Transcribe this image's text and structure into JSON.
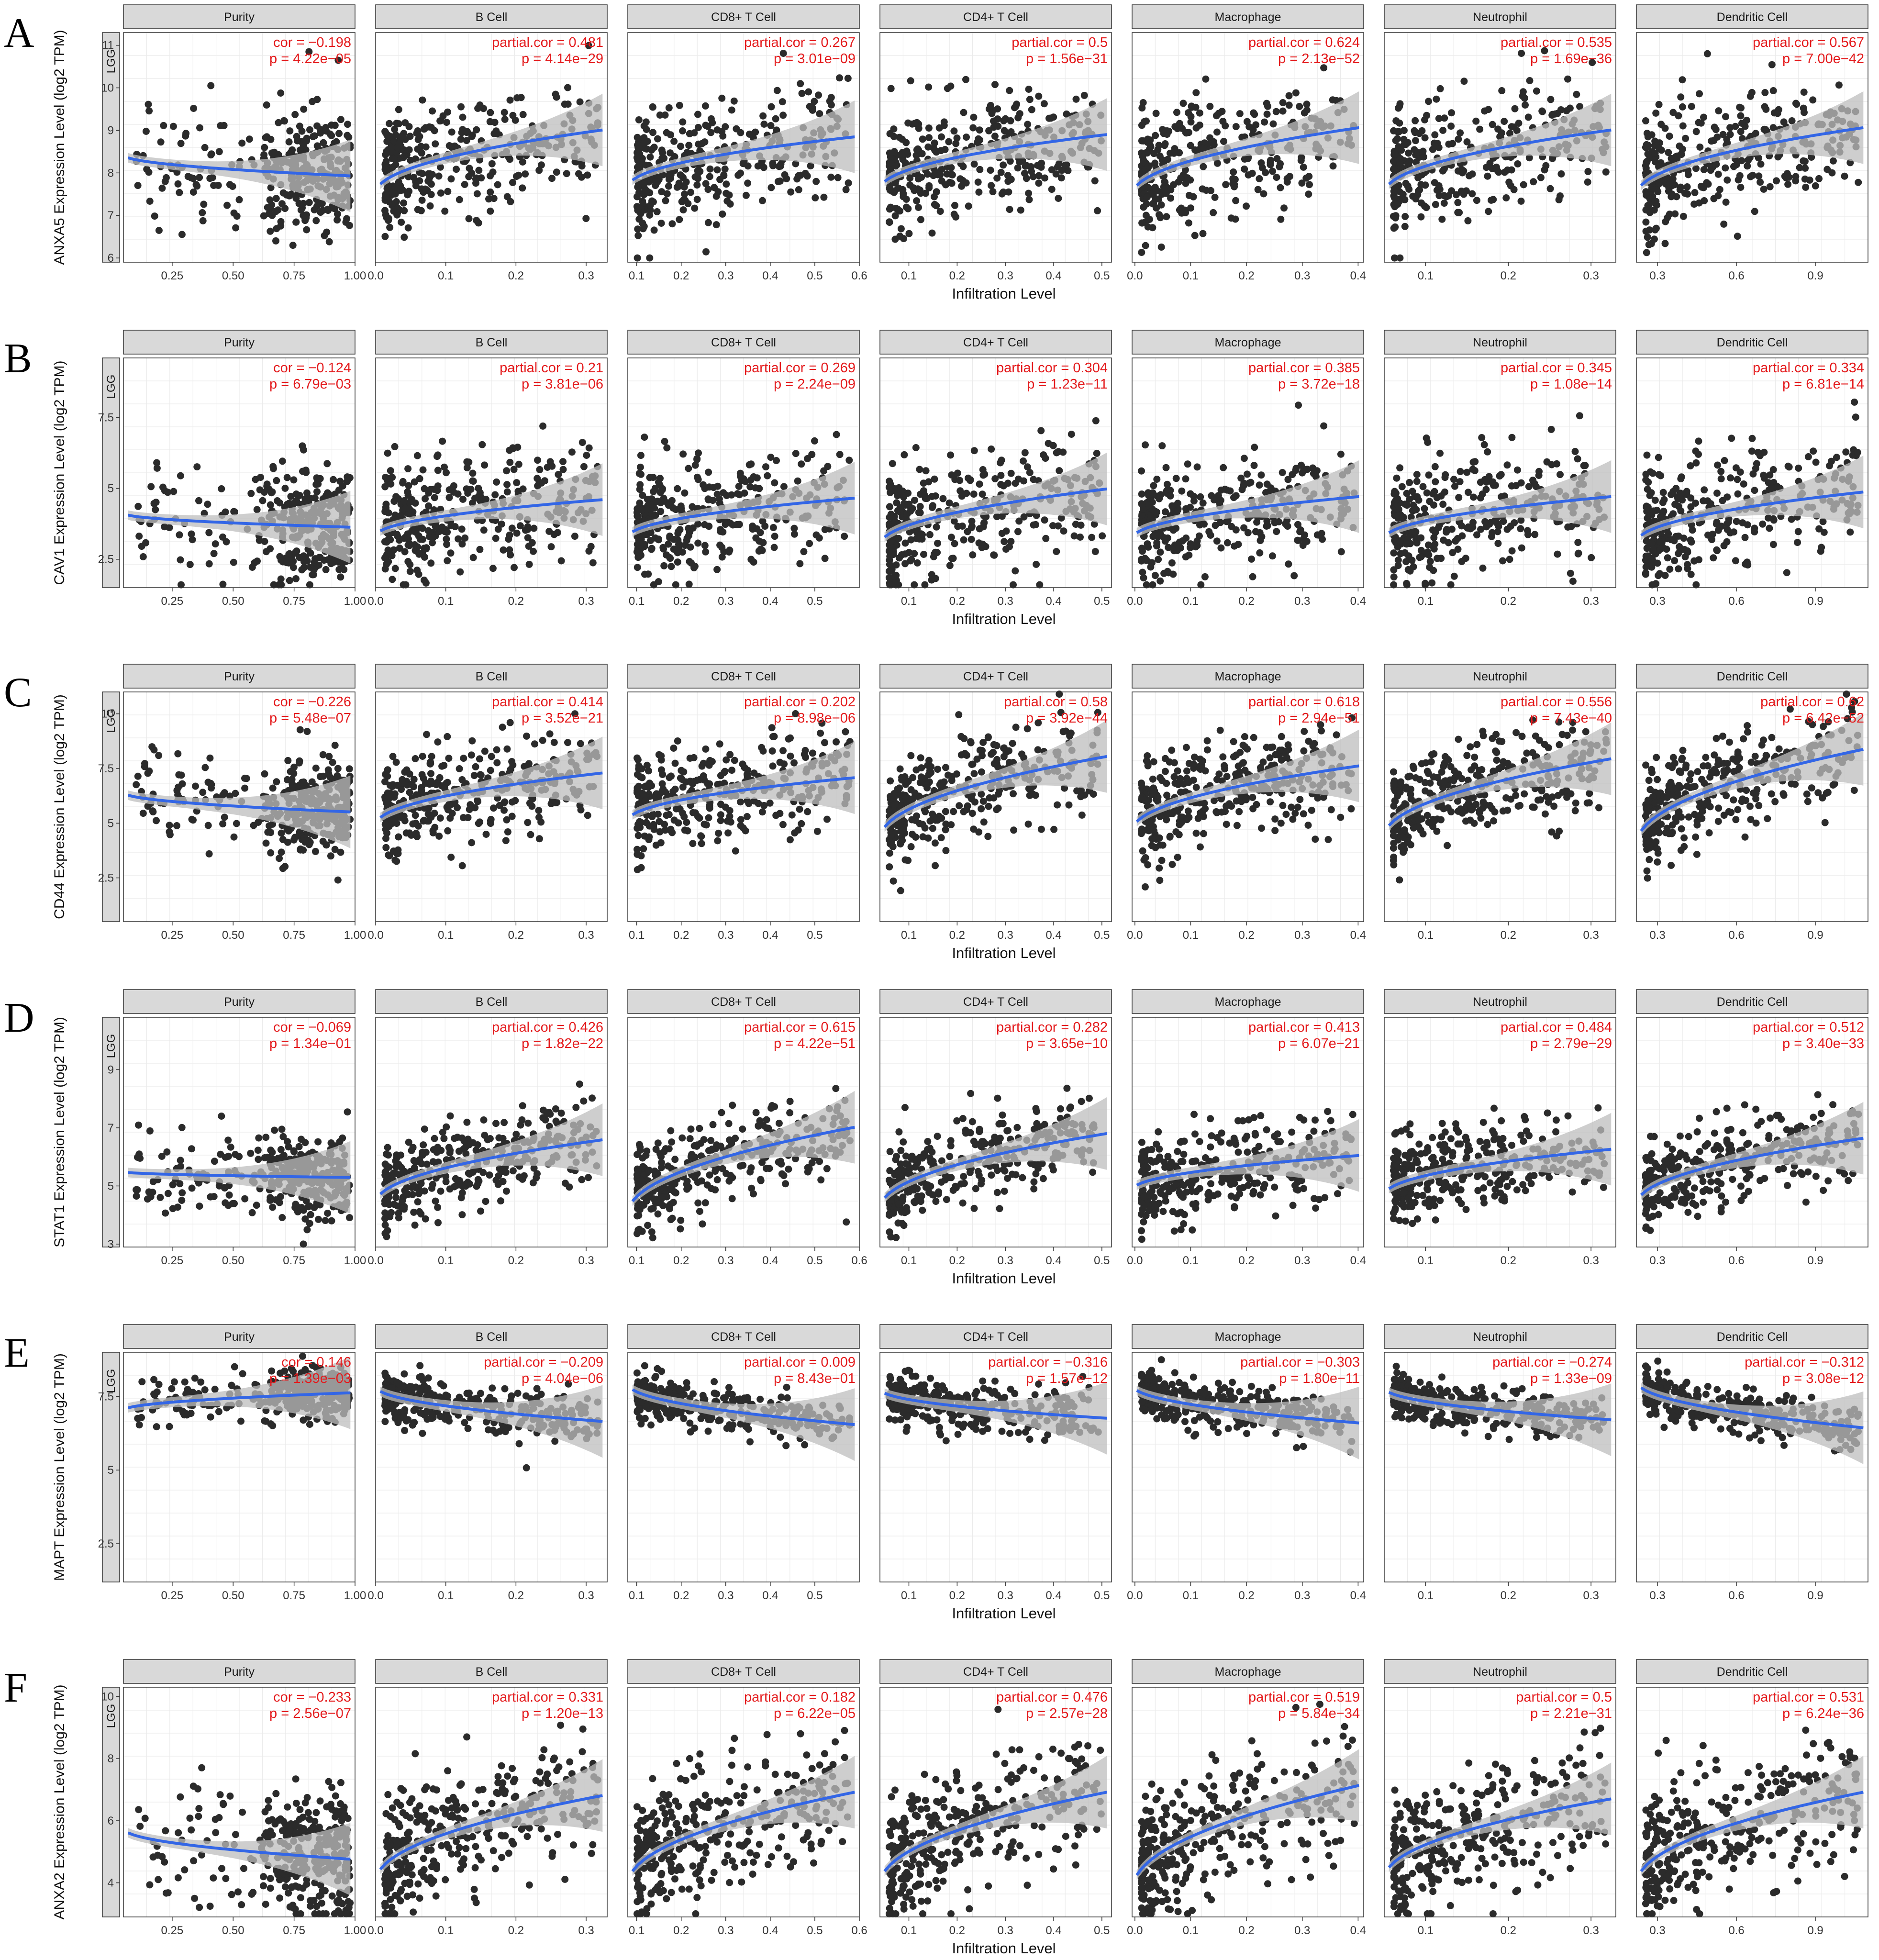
{
  "figure": {
    "tumor_label": "LGG",
    "x_axis_label": "Infiltration Level",
    "panel_strips": [
      "Purity",
      "B Cell",
      "CD8+ T Cell",
      "CD4+ T Cell",
      "Macrophage",
      "Neutrophil",
      "Dendritic Cell"
    ],
    "colors": {
      "points": "#2b2b2b",
      "fit_line": "#3366e6",
      "ci_band": "#bdbdbd",
      "stat_text": "#e41a1c",
      "strip_fill": "#d9d9d9"
    }
  },
  "chart_data": [
    {
      "letter": "A",
      "type": "scatter",
      "ylabel": "ANXA5 Expression Level (log2 TPM)",
      "y_ticks": [
        6,
        7,
        8,
        9,
        10,
        11
      ],
      "panels": [
        {
          "name": "Purity",
          "stat": "cor = −0.198",
          "p": "p = 4.22e−05",
          "x_ticks": [
            "0.25",
            "0.50",
            "0.75",
            "1.00"
          ]
        },
        {
          "name": "B Cell",
          "stat": "partial.cor = 0.481",
          "p": "p = 4.14e−29",
          "x_ticks": [
            "0.0",
            "0.1",
            "0.2",
            "0.3"
          ]
        },
        {
          "name": "CD8+ T Cell",
          "stat": "partial.cor = 0.267",
          "p": "p = 3.01e−09",
          "x_ticks": [
            "0.1",
            "0.2",
            "0.3",
            "0.4",
            "0.5",
            "0.6"
          ]
        },
        {
          "name": "CD4+ T Cell",
          "stat": "partial.cor = 0.5",
          "p": "p = 1.56e−31",
          "x_ticks": [
            "0.1",
            "0.2",
            "0.3",
            "0.4",
            "0.5"
          ]
        },
        {
          "name": "Macrophage",
          "stat": "partial.cor = 0.624",
          "p": "p = 2.13e−52",
          "x_ticks": [
            "0.0",
            "0.1",
            "0.2",
            "0.3",
            "0.4"
          ]
        },
        {
          "name": "Neutrophil",
          "stat": "partial.cor = 0.535",
          "p": "p = 1.69e−36",
          "x_ticks": [
            "0.1",
            "0.2",
            "0.3"
          ]
        },
        {
          "name": "Dendritic Cell",
          "stat": "partial.cor = 0.567",
          "p": "p = 7.00e−42",
          "x_ticks": [
            "0.3",
            "0.6",
            "0.9"
          ]
        }
      ]
    },
    {
      "letter": "B",
      "type": "scatter",
      "ylabel": "CAV1 Expression Level (log2 TPM)",
      "y_ticks": [
        2.5,
        5.0,
        7.5
      ],
      "panels": [
        {
          "name": "Purity",
          "stat": "cor = −0.124",
          "p": "p = 6.79e−03",
          "x_ticks": [
            "0.25",
            "0.50",
            "0.75",
            "1.00"
          ]
        },
        {
          "name": "B Cell",
          "stat": "partial.cor = 0.21",
          "p": "p = 3.81e−06",
          "x_ticks": [
            "0.0",
            "0.1",
            "0.2",
            "0.3"
          ]
        },
        {
          "name": "CD8+ T Cell",
          "stat": "partial.cor = 0.269",
          "p": "p = 2.24e−09",
          "x_ticks": [
            "0.1",
            "0.2",
            "0.3",
            "0.4",
            "0.5"
          ]
        },
        {
          "name": "CD4+ T Cell",
          "stat": "partial.cor = 0.304",
          "p": "p = 1.23e−11",
          "x_ticks": [
            "0.1",
            "0.2",
            "0.3",
            "0.4",
            "0.5"
          ]
        },
        {
          "name": "Macrophage",
          "stat": "partial.cor = 0.385",
          "p": "p = 3.72e−18",
          "x_ticks": [
            "0.0",
            "0.1",
            "0.2",
            "0.3",
            "0.4"
          ]
        },
        {
          "name": "Neutrophil",
          "stat": "partial.cor = 0.345",
          "p": "p = 1.08e−14",
          "x_ticks": [
            "0.1",
            "0.2",
            "0.3"
          ]
        },
        {
          "name": "Dendritic Cell",
          "stat": "partial.cor = 0.334",
          "p": "p = 6.81e−14",
          "x_ticks": [
            "0.3",
            "0.6",
            "0.9"
          ]
        }
      ]
    },
    {
      "letter": "C",
      "type": "scatter",
      "ylabel": "CD44 Expression Level (log2 TPM)",
      "y_ticks": [
        2.5,
        5.0,
        7.5,
        10.0
      ],
      "panels": [
        {
          "name": "Purity",
          "stat": "cor = −0.226",
          "p": "p = 5.48e−07",
          "x_ticks": [
            "0.25",
            "0.50",
            "0.75",
            "1.00"
          ]
        },
        {
          "name": "B Cell",
          "stat": "partial.cor = 0.414",
          "p": "p = 3.52e−21",
          "x_ticks": [
            "0.0",
            "0.1",
            "0.2",
            "0.3"
          ]
        },
        {
          "name": "CD8+ T Cell",
          "stat": "partial.cor = 0.202",
          "p": "p = 8.98e−06",
          "x_ticks": [
            "0.1",
            "0.2",
            "0.3",
            "0.4",
            "0.5"
          ]
        },
        {
          "name": "CD4+ T Cell",
          "stat": "partial.cor = 0.58",
          "p": "p = 3.92e−44",
          "x_ticks": [
            "0.1",
            "0.2",
            "0.3",
            "0.4",
            "0.5"
          ]
        },
        {
          "name": "Macrophage",
          "stat": "partial.cor = 0.618",
          "p": "p = 2.94e−51",
          "x_ticks": [
            "0.0",
            "0.1",
            "0.2",
            "0.3",
            "0.4"
          ]
        },
        {
          "name": "Neutrophil",
          "stat": "partial.cor = 0.556",
          "p": "p = 7.43e−40",
          "x_ticks": [
            "0.1",
            "0.2",
            "0.3"
          ]
        },
        {
          "name": "Dendritic Cell",
          "stat": "partial.cor = 0.62",
          "p": "p = 6.42e−52",
          "x_ticks": [
            "0.3",
            "0.6",
            "0.9"
          ]
        }
      ]
    },
    {
      "letter": "D",
      "type": "scatter",
      "ylabel": "STAT1 Expression Level (log2 TPM)",
      "y_ticks": [
        3,
        5,
        7,
        9
      ],
      "panels": [
        {
          "name": "Purity",
          "stat": "cor = −0.069",
          "p": "p = 1.34e−01",
          "x_ticks": [
            "0.25",
            "0.50",
            "0.75",
            "1.00"
          ]
        },
        {
          "name": "B Cell",
          "stat": "partial.cor = 0.426",
          "p": "p = 1.82e−22",
          "x_ticks": [
            "0.0",
            "0.1",
            "0.2",
            "0.3"
          ]
        },
        {
          "name": "CD8+ T Cell",
          "stat": "partial.cor = 0.615",
          "p": "p = 4.22e−51",
          "x_ticks": [
            "0.1",
            "0.2",
            "0.3",
            "0.4",
            "0.5",
            "0.6"
          ]
        },
        {
          "name": "CD4+ T Cell",
          "stat": "partial.cor = 0.282",
          "p": "p = 3.65e−10",
          "x_ticks": [
            "0.1",
            "0.2",
            "0.3",
            "0.4",
            "0.5"
          ]
        },
        {
          "name": "Macrophage",
          "stat": "partial.cor = 0.413",
          "p": "p = 6.07e−21",
          "x_ticks": [
            "0.0",
            "0.1",
            "0.2",
            "0.3",
            "0.4"
          ]
        },
        {
          "name": "Neutrophil",
          "stat": "partial.cor = 0.484",
          "p": "p = 2.79e−29",
          "x_ticks": [
            "0.1",
            "0.2",
            "0.3"
          ]
        },
        {
          "name": "Dendritic Cell",
          "stat": "partial.cor = 0.512",
          "p": "p = 3.40e−33",
          "x_ticks": [
            "0.3",
            "0.6",
            "0.9"
          ]
        }
      ]
    },
    {
      "letter": "E",
      "type": "scatter",
      "ylabel": "MAPT Expression Level (log2 TPM)",
      "y_ticks": [
        2.5,
        5.0,
        7.5
      ],
      "panels": [
        {
          "name": "Purity",
          "stat": "cor = 0.146",
          "p": "p = 1.39e−03",
          "x_ticks": [
            "0.25",
            "0.50",
            "0.75",
            "1.00"
          ]
        },
        {
          "name": "B Cell",
          "stat": "partial.cor = −0.209",
          "p": "p = 4.04e−06",
          "x_ticks": [
            "0.0",
            "0.1",
            "0.2",
            "0.3"
          ]
        },
        {
          "name": "CD8+ T Cell",
          "stat": "partial.cor = 0.009",
          "p": "p = 8.43e−01",
          "x_ticks": [
            "0.1",
            "0.2",
            "0.3",
            "0.4",
            "0.5"
          ]
        },
        {
          "name": "CD4+ T Cell",
          "stat": "partial.cor = −0.316",
          "p": "p = 1.57e−12",
          "x_ticks": [
            "0.1",
            "0.2",
            "0.3",
            "0.4",
            "0.5"
          ]
        },
        {
          "name": "Macrophage",
          "stat": "partial.cor = −0.303",
          "p": "p = 1.80e−11",
          "x_ticks": [
            "0.0",
            "0.1",
            "0.2",
            "0.3",
            "0.4"
          ]
        },
        {
          "name": "Neutrophil",
          "stat": "partial.cor = −0.274",
          "p": "p = 1.33e−09",
          "x_ticks": [
            "0.1",
            "0.2",
            "0.3"
          ]
        },
        {
          "name": "Dendritic Cell",
          "stat": "partial.cor = −0.312",
          "p": "p = 3.08e−12",
          "x_ticks": [
            "0.3",
            "0.6",
            "0.9"
          ]
        }
      ]
    },
    {
      "letter": "F",
      "type": "scatter",
      "ylabel": "ANXA2 Expression Level (log2 TPM)",
      "y_ticks": [
        4,
        6,
        8,
        10
      ],
      "panels": [
        {
          "name": "Purity",
          "stat": "cor = −0.233",
          "p": "p = 2.56e−07",
          "x_ticks": [
            "0.25",
            "0.50",
            "0.75",
            "1.00"
          ]
        },
        {
          "name": "B Cell",
          "stat": "partial.cor = 0.331",
          "p": "p = 1.20e−13",
          "x_ticks": [
            "0.0",
            "0.1",
            "0.2",
            "0.3"
          ]
        },
        {
          "name": "CD8+ T Cell",
          "stat": "partial.cor = 0.182",
          "p": "p = 6.22e−05",
          "x_ticks": [
            "0.1",
            "0.2",
            "0.3",
            "0.4",
            "0.5",
            "0.6"
          ]
        },
        {
          "name": "CD4+ T Cell",
          "stat": "partial.cor = 0.476",
          "p": "p = 2.57e−28",
          "x_ticks": [
            "0.1",
            "0.2",
            "0.3",
            "0.4",
            "0.5"
          ]
        },
        {
          "name": "Macrophage",
          "stat": "partial.cor = 0.519",
          "p": "p = 5.84e−34",
          "x_ticks": [
            "0.0",
            "0.1",
            "0.2",
            "0.3",
            "0.4"
          ]
        },
        {
          "name": "Neutrophil",
          "stat": "partial.cor = 0.5",
          "p": "p = 2.21e−31",
          "x_ticks": [
            "0.1",
            "0.2",
            "0.3"
          ]
        },
        {
          "name": "Dendritic Cell",
          "stat": "partial.cor = 0.531",
          "p": "p = 6.24e−36",
          "x_ticks": [
            "0.3",
            "0.6",
            "0.9"
          ]
        }
      ]
    }
  ]
}
